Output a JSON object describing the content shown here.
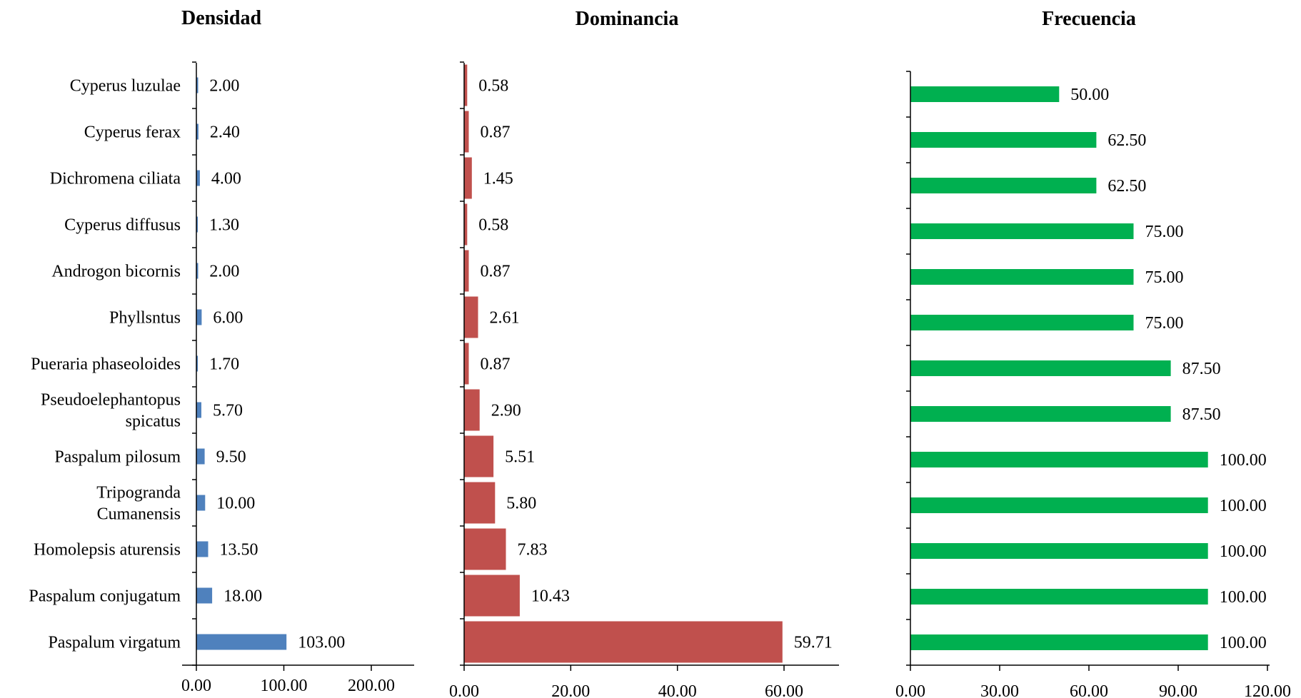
{
  "chart_data": [
    {
      "type": "bar",
      "orientation": "horizontal",
      "title": "Densidad",
      "color": "#4f81bd",
      "categories": [
        "Cyperus luzulae",
        "Cyperus ferax",
        "Dichromena ciliata",
        "Cyperus diffusus",
        "Androgon bicornis",
        "Phyllsntus",
        "Pueraria phaseoloides",
        "Pseudoelephantopus spicatus",
        "Paspalum pilosum",
        "Tripogranda Cumanensis",
        "Homolepsis aturensis",
        "Paspalum conjugatum",
        "Paspalum virgatum"
      ],
      "values": [
        2.0,
        2.4,
        4.0,
        1.3,
        2.0,
        6.0,
        1.7,
        5.7,
        9.5,
        10.0,
        13.5,
        18.0,
        103.0
      ],
      "value_labels": [
        "2.00",
        "2.40",
        "4.00",
        "1.30",
        "2.00",
        "6.00",
        "1.70",
        "5.70",
        "9.50",
        "10.00",
        "13.50",
        "18.00",
        "103.00"
      ],
      "xlim": [
        0,
        200
      ],
      "xticks": [
        "0.00",
        "100.00",
        "200.00"
      ]
    },
    {
      "type": "bar",
      "orientation": "horizontal",
      "title": "Dominancia",
      "color": "#c0504d",
      "categories": [
        "Cyperus luzulae",
        "Cyperus ferax",
        "Dichromena ciliata",
        "Cyperus diffusus",
        "Androgon bicornis",
        "Phyllsntus",
        "Pueraria phaseoloides",
        "Pseudoelephantopus spicatus",
        "Paspalum pilosum",
        "Tripogranda Cumanensis",
        "Homolepsis aturensis",
        "Paspalum conjugatum",
        "Paspalum virgatum"
      ],
      "values": [
        0.58,
        0.87,
        1.45,
        0.58,
        0.87,
        2.61,
        0.87,
        2.9,
        5.51,
        5.8,
        7.83,
        10.43,
        59.71
      ],
      "value_labels": [
        "0.58",
        "0.87",
        "1.45",
        "0.58",
        "0.87",
        "2.61",
        "0.87",
        "2.90",
        "5.51",
        "5.80",
        "7.83",
        "10.43",
        "59.71"
      ],
      "xlim": [
        0,
        60
      ],
      "xticks": [
        "0.00",
        "20.00",
        "40.00",
        "60.00"
      ]
    },
    {
      "type": "bar",
      "orientation": "horizontal",
      "title": "Frecuencia",
      "color": "#00b050",
      "categories": [
        "Cyperus luzulae",
        "Cyperus ferax",
        "Dichromena ciliata",
        "Cyperus diffusus",
        "Androgon bicornis",
        "Phyllsntus",
        "Pueraria phaseoloides",
        "Pseudoelephantopus spicatus",
        "Paspalum pilosum",
        "Tripogranda Cumanensis",
        "Homolepsis aturensis",
        "Paspalum conjugatum",
        "Paspalum virgatum"
      ],
      "values": [
        50.0,
        62.5,
        62.5,
        75.0,
        75.0,
        75.0,
        87.5,
        87.5,
        100.0,
        100.0,
        100.0,
        100.0,
        100.0
      ],
      "value_labels": [
        "50.00",
        "62.50",
        "62.50",
        "75.00",
        "75.00",
        "75.00",
        "87.50",
        "87.50",
        "100.00",
        "100.00",
        "100.00",
        "100.00",
        "100.00"
      ],
      "xlim": [
        0,
        120
      ],
      "xticks": [
        "0.00",
        "30.00",
        "60.00",
        "90.00",
        "120.00"
      ]
    }
  ],
  "category_labels": [
    [
      "Cyperus luzulae"
    ],
    [
      "Cyperus ferax"
    ],
    [
      "Dichromena ciliata"
    ],
    [
      "Cyperus diffusus"
    ],
    [
      "Androgon bicornis"
    ],
    [
      "Phyllsntus"
    ],
    [
      "Pueraria phaseoloides"
    ],
    [
      "Pseudoelephantopus",
      "spicatus"
    ],
    [
      "Paspalum pilosum"
    ],
    [
      "Tripogranda",
      "Cumanensis"
    ],
    [
      "Homolepsis aturensis"
    ],
    [
      "Paspalum conjugatum"
    ],
    [
      "Paspalum virgatum"
    ]
  ]
}
